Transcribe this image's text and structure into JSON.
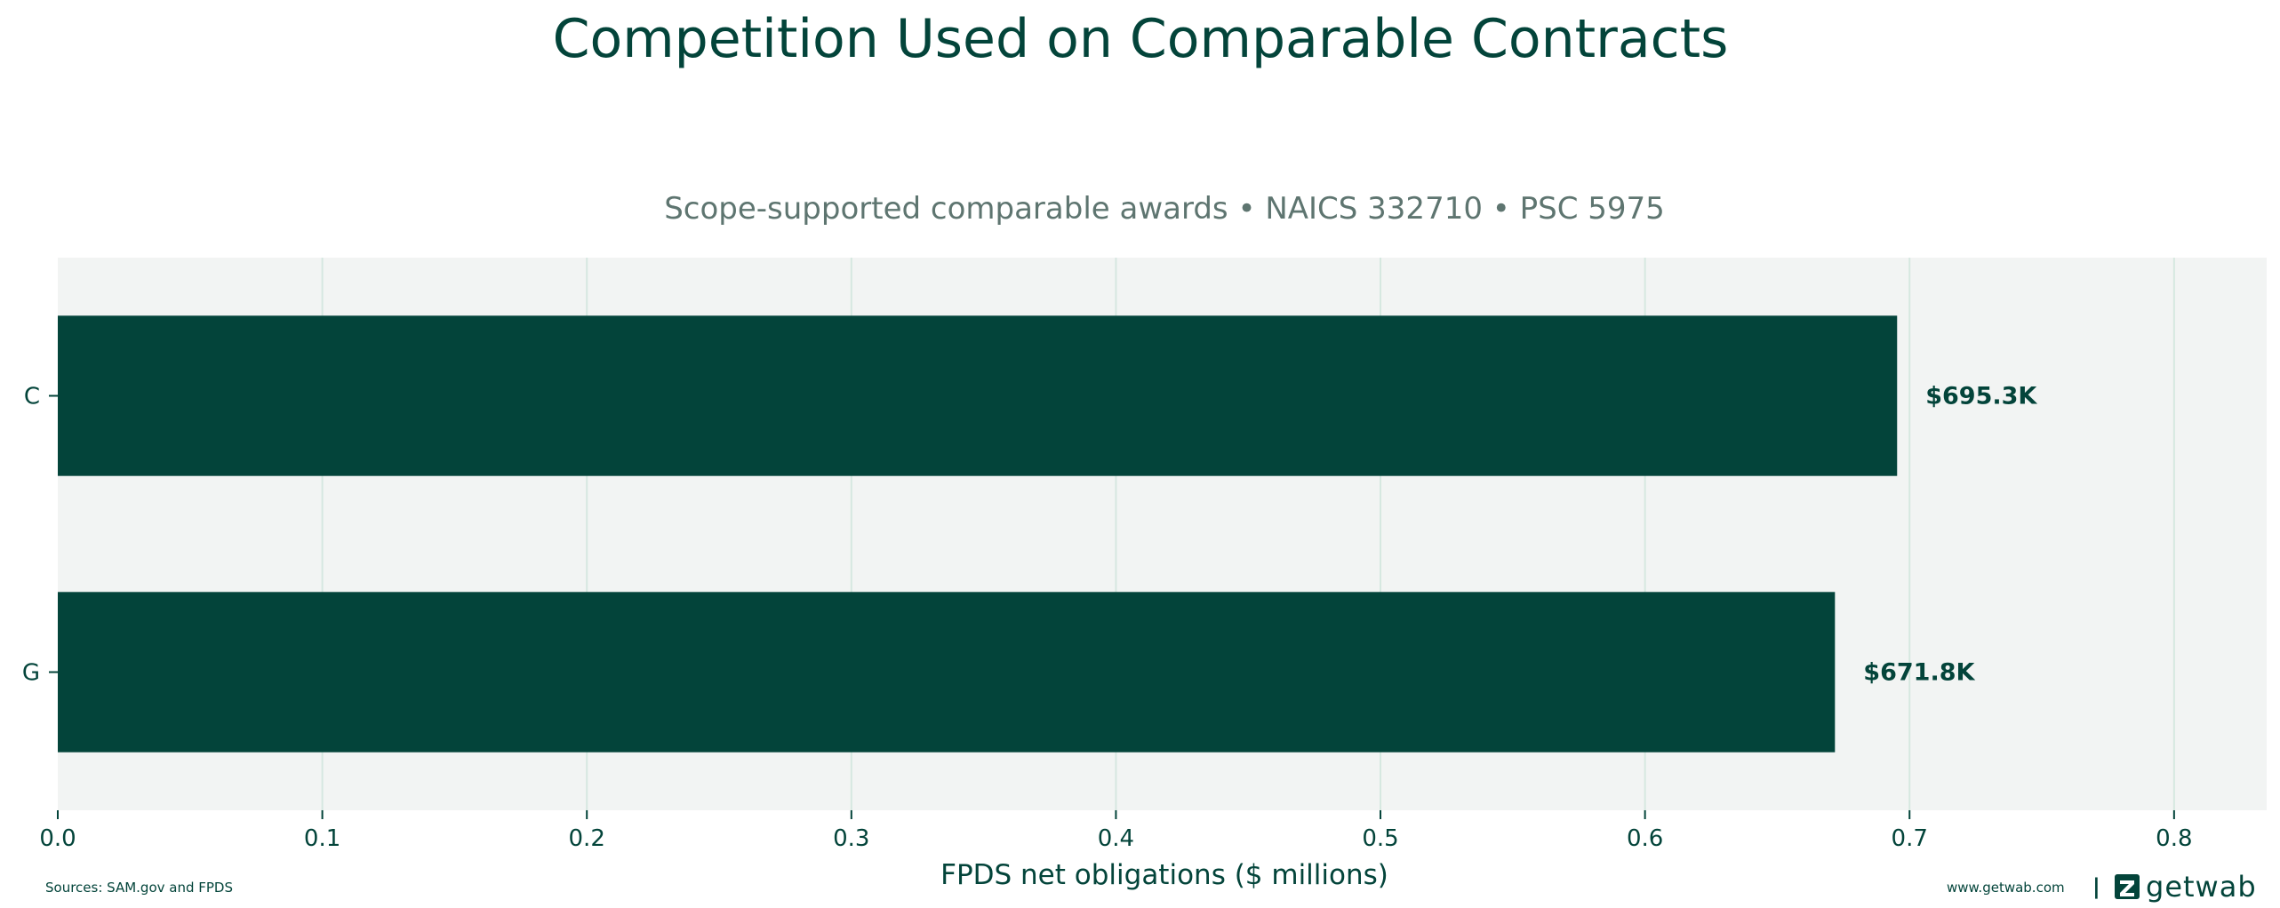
{
  "chart_data": {
    "type": "bar",
    "orientation": "horizontal",
    "title": "Competition Used on Comparable Contracts",
    "subtitle": "Scope-supported comparable awards • NAICS 332710 • PSC 5975",
    "xlabel": "FPDS net obligations ($ millions)",
    "categories": [
      "C",
      "G"
    ],
    "values": [
      0.6953,
      0.6718
    ],
    "value_labels": [
      "$695.3K",
      "$671.8K"
    ],
    "xlim": [
      0,
      0.835
    ],
    "xticks": [
      "0.0",
      "0.1",
      "0.2",
      "0.3",
      "0.4",
      "0.5",
      "0.6",
      "0.7",
      "0.8"
    ],
    "grid": "vertical",
    "bar_color": "#03443a",
    "plot_background": "#f2f4f3",
    "grid_color": "#d6e8e0"
  },
  "footer": {
    "source": "Sources: SAM.gov and FPDS",
    "website": "www.getwab.com",
    "separator": "|",
    "brand": "getwab"
  }
}
